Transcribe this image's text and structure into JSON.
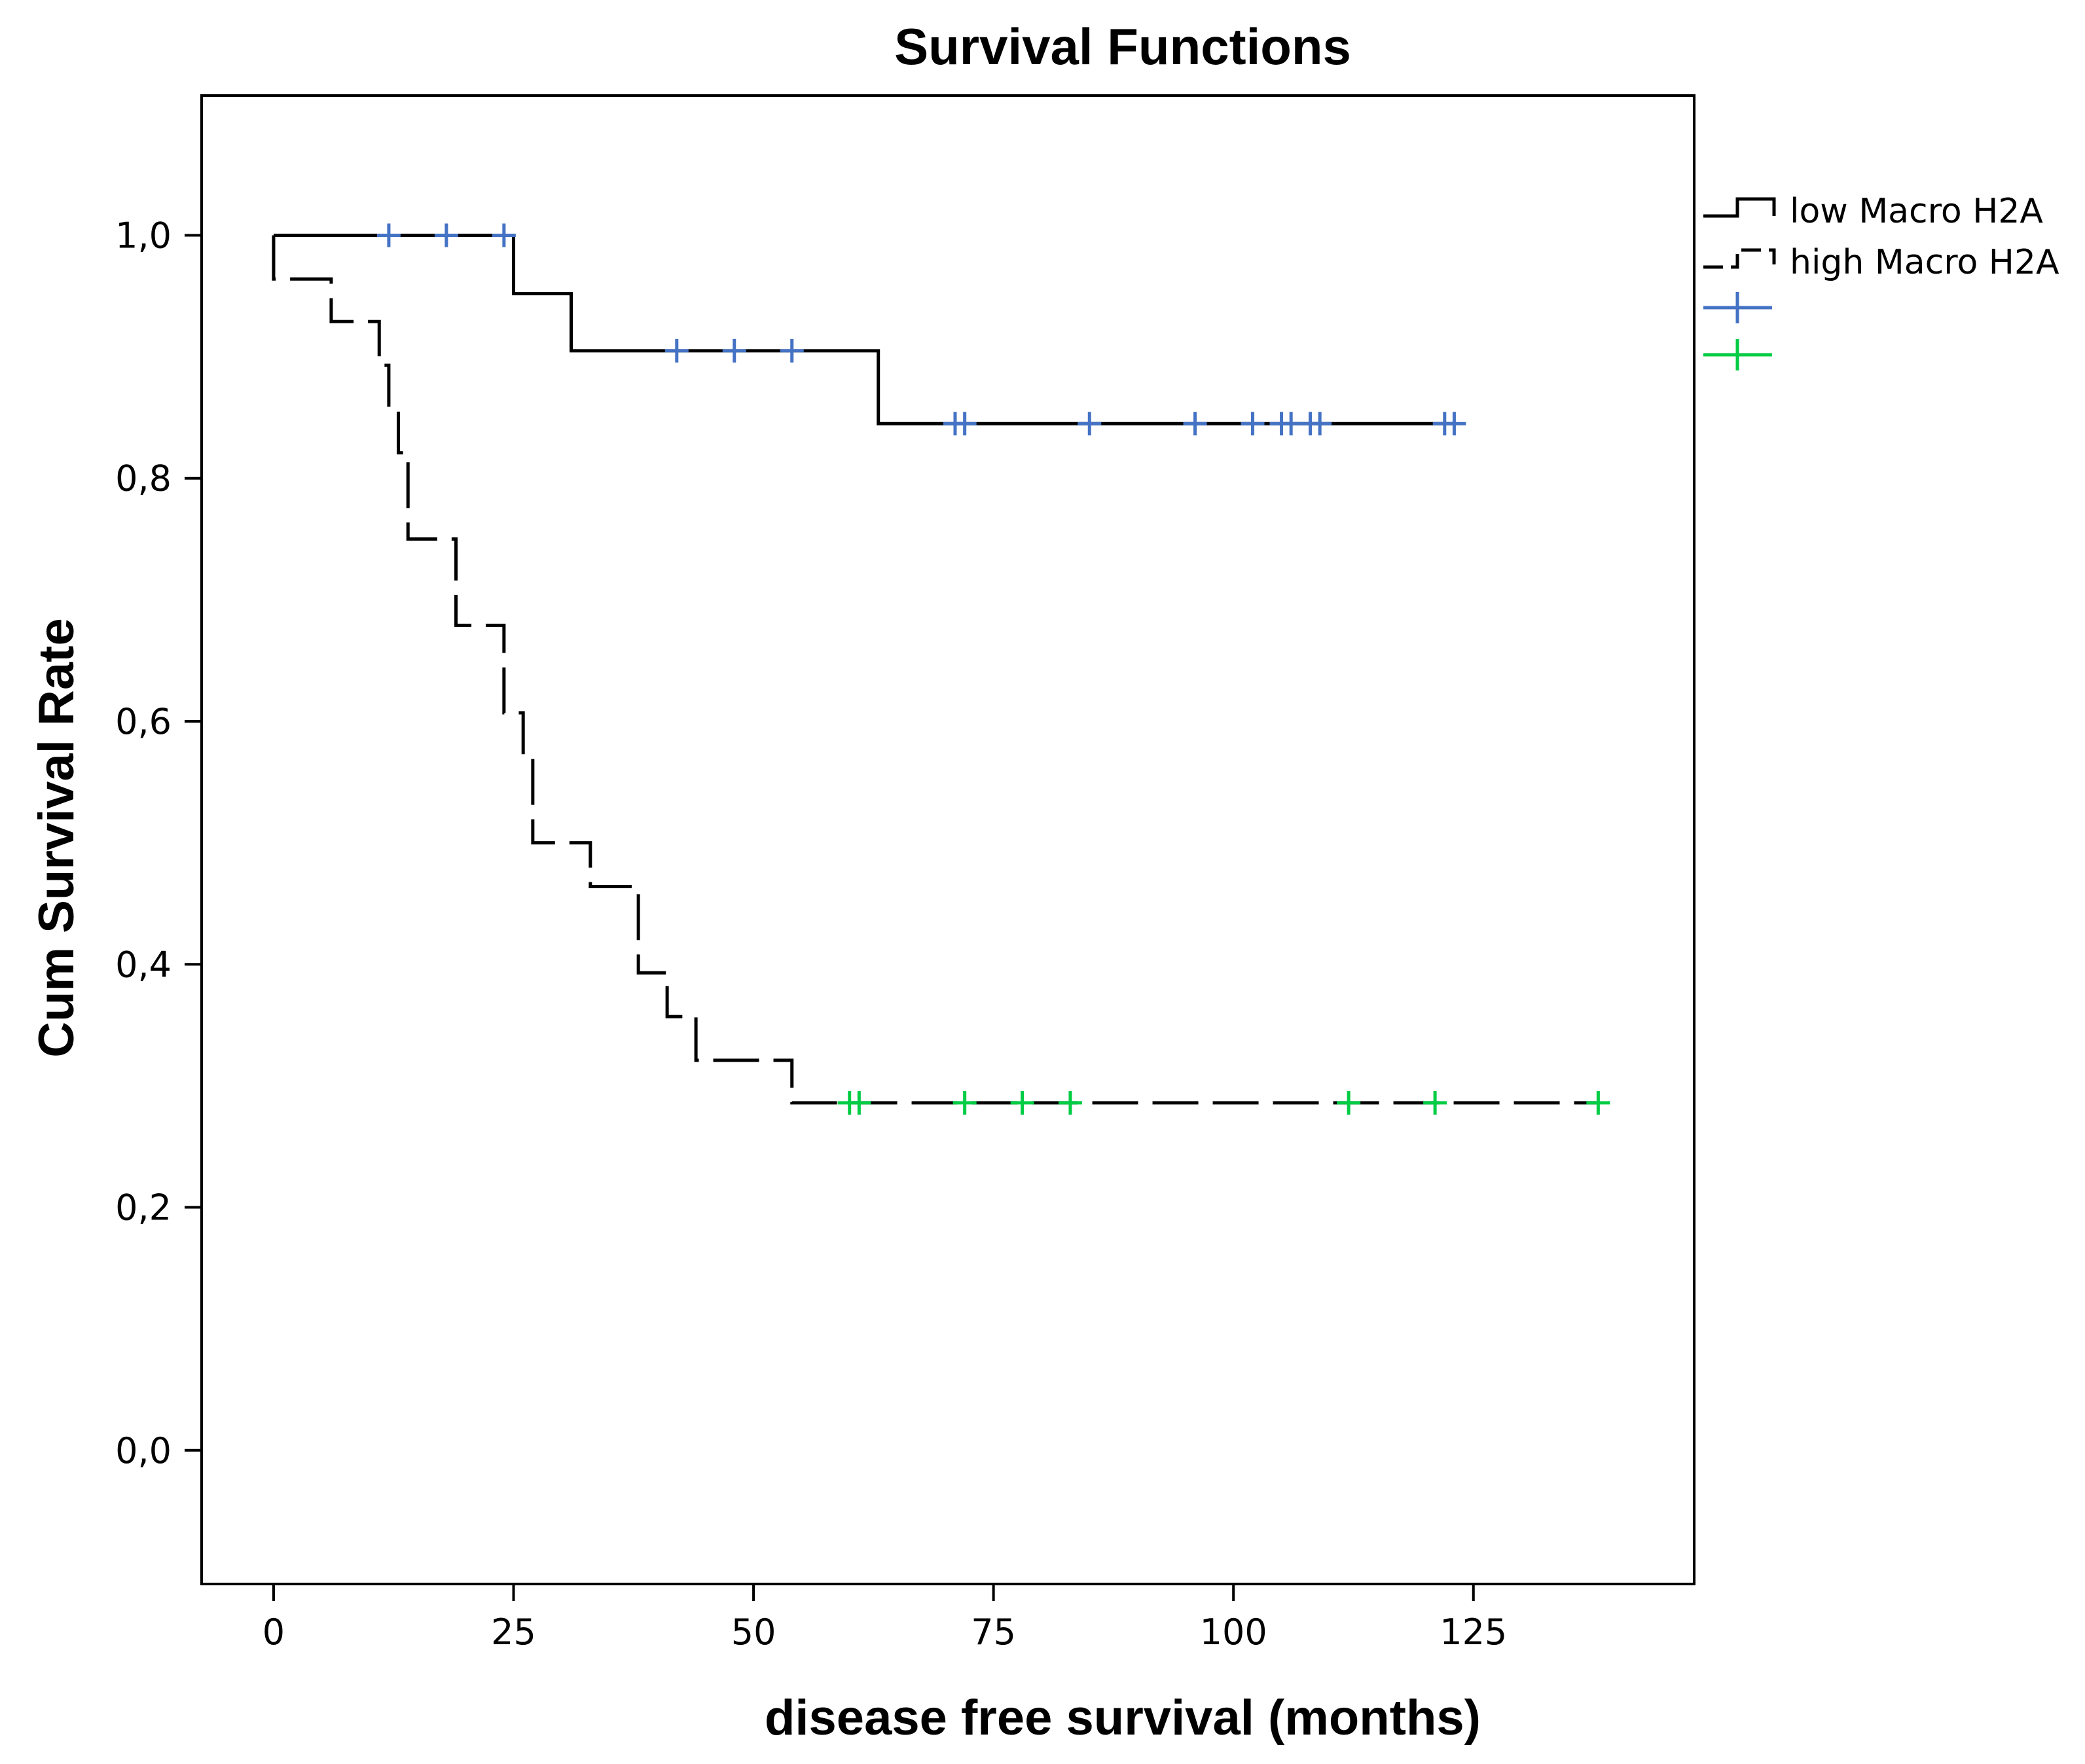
{
  "chart_data": {
    "type": "line",
    "title": "Survival Functions",
    "xlabel": "disease free survival (months)",
    "ylabel": "Cum Survival Rate",
    "xlim": [
      -7.5,
      148
    ],
    "ylim": [
      -0.11,
      1.115
    ],
    "x_ticks": [
      0,
      25,
      50,
      75,
      100,
      125
    ],
    "x_tick_labels": [
      "0",
      "25",
      "50",
      "75",
      "100",
      "125"
    ],
    "y_ticks": [
      0.0,
      0.2,
      0.4,
      0.6,
      0.8,
      1.0
    ],
    "y_tick_labels": [
      "0,0",
      "0,2",
      "0,4",
      "0,6",
      "0,8",
      "1,0"
    ],
    "grid": false,
    "legend_position": "right",
    "series": [
      {
        "name": "low Macro H2A",
        "line_style": "solid",
        "color": "#000000",
        "censor_color": "#4472C4",
        "steps": [
          [
            0,
            1.0
          ],
          [
            25,
            0.952
          ],
          [
            31,
            0.905
          ],
          [
            63,
            0.845
          ],
          [
            123,
            0.845
          ]
        ],
        "censored": [
          12,
          18,
          24,
          42,
          48,
          54,
          71,
          72,
          85,
          96,
          102,
          105,
          106,
          108,
          109,
          122,
          123
        ]
      },
      {
        "name": "high Macro H2A",
        "line_style": "dashed",
        "color": "#000000",
        "censor_color": "#00CC44",
        "steps": [
          [
            0,
            0.964
          ],
          [
            6,
            0.929
          ],
          [
            11,
            0.893
          ],
          [
            12,
            0.857
          ],
          [
            13,
            0.821
          ],
          [
            14,
            0.75
          ],
          [
            19,
            0.679
          ],
          [
            24,
            0.607
          ],
          [
            26,
            0.571
          ],
          [
            27,
            0.5
          ],
          [
            33,
            0.464
          ],
          [
            38,
            0.393
          ],
          [
            41,
            0.357
          ],
          [
            44,
            0.321
          ],
          [
            54,
            0.286
          ],
          [
            138,
            0.286
          ]
        ],
        "censored": [
          60,
          61,
          72,
          78,
          83,
          112,
          121,
          138
        ]
      }
    ],
    "legend": [
      {
        "label": "low Macro H2A",
        "symbol": "solid-step"
      },
      {
        "label": "high Macro H2A",
        "symbol": "dashed-step"
      },
      {
        "label": "",
        "symbol": "censor-cross",
        "color": "#4472C4"
      },
      {
        "label": "",
        "symbol": "censor-cross",
        "color": "#00CC44"
      }
    ]
  }
}
